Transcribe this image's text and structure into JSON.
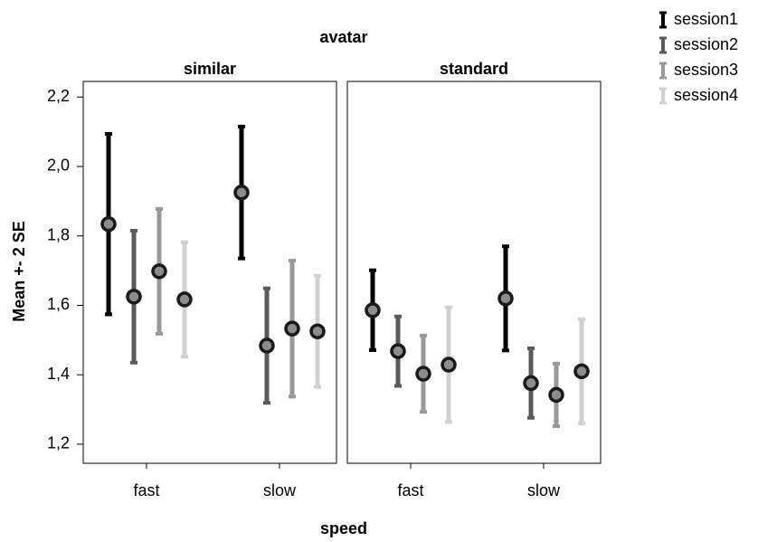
{
  "chart_data": {
    "type": "errorbar",
    "title": "avatar",
    "x_label": "speed",
    "y_label": "Mean +- 2 SE",
    "panels": [
      "similar",
      "standard"
    ],
    "categories": [
      "fast",
      "slow",
      "fast",
      "slow"
    ],
    "ylim": [
      1.145,
      2.245
    ],
    "yticks": [
      {
        "value": 1.2,
        "label": "1,2"
      },
      {
        "value": 1.4,
        "label": "1,4"
      },
      {
        "value": 1.6,
        "label": "1,6"
      },
      {
        "value": 1.8,
        "label": "1,8"
      },
      {
        "value": 2.0,
        "label": "2,0"
      },
      {
        "value": 2.2,
        "label": "2,2"
      }
    ],
    "legend": "right",
    "series": [
      {
        "name": "session1",
        "color": "#000000",
        "values": [
          1.834,
          1.925,
          1.586,
          1.62
        ],
        "errors": [
          0.26,
          0.19,
          0.115,
          0.15
        ]
      },
      {
        "name": "session2",
        "color": "#5a5a5a",
        "values": [
          1.625,
          1.484,
          1.468,
          1.376
        ],
        "errors": [
          0.19,
          0.165,
          0.1,
          0.1
        ]
      },
      {
        "name": "session3",
        "color": "#999999",
        "values": [
          1.698,
          1.533,
          1.403,
          1.342
        ],
        "errors": [
          0.18,
          0.196,
          0.11,
          0.09
        ]
      },
      {
        "name": "session4",
        "color": "#d0d0d0",
        "values": [
          1.617,
          1.525,
          1.429,
          1.41
        ],
        "errors": [
          0.165,
          0.16,
          0.165,
          0.15
        ]
      }
    ]
  }
}
